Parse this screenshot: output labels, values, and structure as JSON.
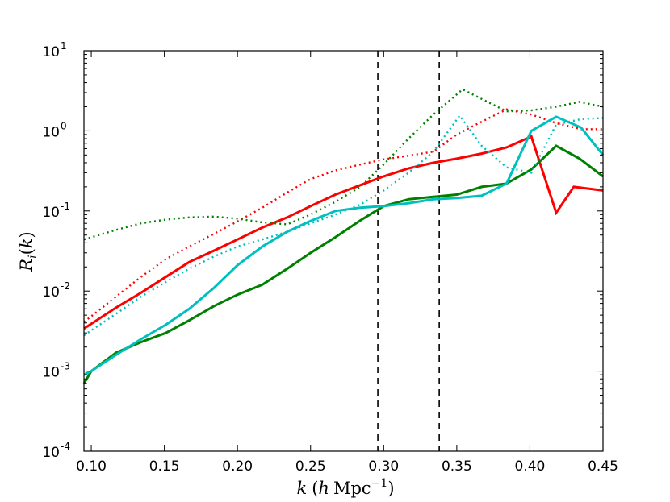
{
  "chart_data": {
    "type": "line",
    "title": "",
    "xlabel": "k (h Mpc^-1)",
    "ylabel": "R_i(k)",
    "xlim": [
      0.095,
      0.45
    ],
    "ylim": [
      0.0001,
      10
    ],
    "yscale": "log",
    "grid": false,
    "x_ticks": [
      "0.10",
      "0.15",
      "0.20",
      "0.25",
      "0.30",
      "0.35",
      "0.40",
      "0.45"
    ],
    "x_tick_values": [
      0.1,
      0.15,
      0.2,
      0.25,
      0.3,
      0.35,
      0.4,
      0.45
    ],
    "y_ticks": [
      {
        "value": 0.0001,
        "base": "10",
        "exp": "-4"
      },
      {
        "value": 0.001,
        "base": "10",
        "exp": "-3"
      },
      {
        "value": 0.01,
        "base": "10",
        "exp": "-2"
      },
      {
        "value": 0.1,
        "base": "10",
        "exp": "-1"
      },
      {
        "value": 1,
        "base": "10",
        "exp": "0"
      },
      {
        "value": 10,
        "base": "10",
        "exp": "1"
      }
    ],
    "vlines": [
      {
        "x": 0.296,
        "style": "dashed",
        "color": "#000000"
      },
      {
        "x": 0.338,
        "style": "dashed",
        "color": "#000000"
      }
    ],
    "series": [
      {
        "color": "#ff0000",
        "style": "solid",
        "points": [
          [
            0.095,
            0.0034
          ],
          [
            0.117,
            0.0062
          ],
          [
            0.134,
            0.0095
          ],
          [
            0.151,
            0.015
          ],
          [
            0.167,
            0.023
          ],
          [
            0.184,
            0.032
          ],
          [
            0.2,
            0.044
          ],
          [
            0.217,
            0.062
          ],
          [
            0.234,
            0.083
          ],
          [
            0.25,
            0.115
          ],
          [
            0.267,
            0.16
          ],
          [
            0.284,
            0.21
          ],
          [
            0.3,
            0.27
          ],
          [
            0.317,
            0.34
          ],
          [
            0.334,
            0.4
          ],
          [
            0.35,
            0.45
          ],
          [
            0.367,
            0.52
          ],
          [
            0.384,
            0.62
          ],
          [
            0.401,
            0.85
          ],
          [
            0.418,
            0.095
          ],
          [
            0.43,
            0.2
          ],
          [
            0.45,
            0.18
          ]
        ]
      },
      {
        "color": "#ff0000",
        "style": "dotted",
        "points": [
          [
            0.095,
            0.0041
          ],
          [
            0.117,
            0.0085
          ],
          [
            0.134,
            0.015
          ],
          [
            0.151,
            0.025
          ],
          [
            0.167,
            0.036
          ],
          [
            0.184,
            0.052
          ],
          [
            0.2,
            0.074
          ],
          [
            0.217,
            0.11
          ],
          [
            0.234,
            0.17
          ],
          [
            0.25,
            0.25
          ],
          [
            0.267,
            0.32
          ],
          [
            0.284,
            0.38
          ],
          [
            0.3,
            0.44
          ],
          [
            0.317,
            0.49
          ],
          [
            0.334,
            0.55
          ],
          [
            0.35,
            0.9
          ],
          [
            0.367,
            1.3
          ],
          [
            0.384,
            1.85
          ],
          [
            0.401,
            1.6
          ],
          [
            0.418,
            1.25
          ],
          [
            0.435,
            1.05
          ],
          [
            0.45,
            1.05
          ]
        ]
      },
      {
        "color": "#008000",
        "style": "solid",
        "points": [
          [
            0.095,
            0.0007
          ],
          [
            0.1,
            0.001
          ],
          [
            0.117,
            0.0017
          ],
          [
            0.134,
            0.0023
          ],
          [
            0.151,
            0.003
          ],
          [
            0.167,
            0.0043
          ],
          [
            0.184,
            0.0065
          ],
          [
            0.2,
            0.009
          ],
          [
            0.217,
            0.012
          ],
          [
            0.234,
            0.019
          ],
          [
            0.25,
            0.03
          ],
          [
            0.267,
            0.047
          ],
          [
            0.284,
            0.076
          ],
          [
            0.3,
            0.115
          ],
          [
            0.317,
            0.14
          ],
          [
            0.334,
            0.15
          ],
          [
            0.35,
            0.16
          ],
          [
            0.367,
            0.2
          ],
          [
            0.384,
            0.22
          ],
          [
            0.401,
            0.33
          ],
          [
            0.418,
            0.65
          ],
          [
            0.434,
            0.45
          ],
          [
            0.45,
            0.27
          ]
        ]
      },
      {
        "color": "#008000",
        "style": "dotted",
        "points": [
          [
            0.095,
            0.044
          ],
          [
            0.117,
            0.058
          ],
          [
            0.134,
            0.07
          ],
          [
            0.151,
            0.078
          ],
          [
            0.167,
            0.083
          ],
          [
            0.184,
            0.085
          ],
          [
            0.2,
            0.08
          ],
          [
            0.217,
            0.072
          ],
          [
            0.234,
            0.068
          ],
          [
            0.25,
            0.09
          ],
          [
            0.267,
            0.13
          ],
          [
            0.284,
            0.2
          ],
          [
            0.3,
            0.38
          ],
          [
            0.317,
            0.8
          ],
          [
            0.334,
            1.6
          ],
          [
            0.354,
            3.3
          ],
          [
            0.367,
            2.5
          ],
          [
            0.384,
            1.75
          ],
          [
            0.401,
            1.8
          ],
          [
            0.418,
            2.0
          ],
          [
            0.434,
            2.3
          ],
          [
            0.45,
            2.0
          ]
        ]
      },
      {
        "color": "#00bfbf",
        "style": "solid",
        "points": [
          [
            0.095,
            0.0009
          ],
          [
            0.1,
            0.001
          ],
          [
            0.117,
            0.0016
          ],
          [
            0.134,
            0.0025
          ],
          [
            0.151,
            0.0038
          ],
          [
            0.167,
            0.006
          ],
          [
            0.184,
            0.011
          ],
          [
            0.2,
            0.021
          ],
          [
            0.217,
            0.036
          ],
          [
            0.234,
            0.055
          ],
          [
            0.25,
            0.075
          ],
          [
            0.267,
            0.1
          ],
          [
            0.284,
            0.11
          ],
          [
            0.3,
            0.115
          ],
          [
            0.317,
            0.125
          ],
          [
            0.334,
            0.14
          ],
          [
            0.35,
            0.145
          ],
          [
            0.367,
            0.155
          ],
          [
            0.384,
            0.22
          ],
          [
            0.401,
            1.0
          ],
          [
            0.418,
            1.5
          ],
          [
            0.435,
            1.1
          ],
          [
            0.45,
            0.5
          ]
        ]
      },
      {
        "color": "#00bfbf",
        "style": "dotted",
        "points": [
          [
            0.095,
            0.0028
          ],
          [
            0.117,
            0.0052
          ],
          [
            0.134,
            0.0085
          ],
          [
            0.151,
            0.013
          ],
          [
            0.167,
            0.019
          ],
          [
            0.184,
            0.027
          ],
          [
            0.2,
            0.036
          ],
          [
            0.217,
            0.044
          ],
          [
            0.234,
            0.055
          ],
          [
            0.25,
            0.07
          ],
          [
            0.267,
            0.09
          ],
          [
            0.284,
            0.12
          ],
          [
            0.3,
            0.18
          ],
          [
            0.317,
            0.3
          ],
          [
            0.334,
            0.55
          ],
          [
            0.352,
            1.55
          ],
          [
            0.367,
            0.65
          ],
          [
            0.384,
            0.35
          ],
          [
            0.401,
            0.3
          ],
          [
            0.418,
            1.2
          ],
          [
            0.435,
            1.4
          ],
          [
            0.45,
            1.45
          ]
        ]
      }
    ]
  }
}
